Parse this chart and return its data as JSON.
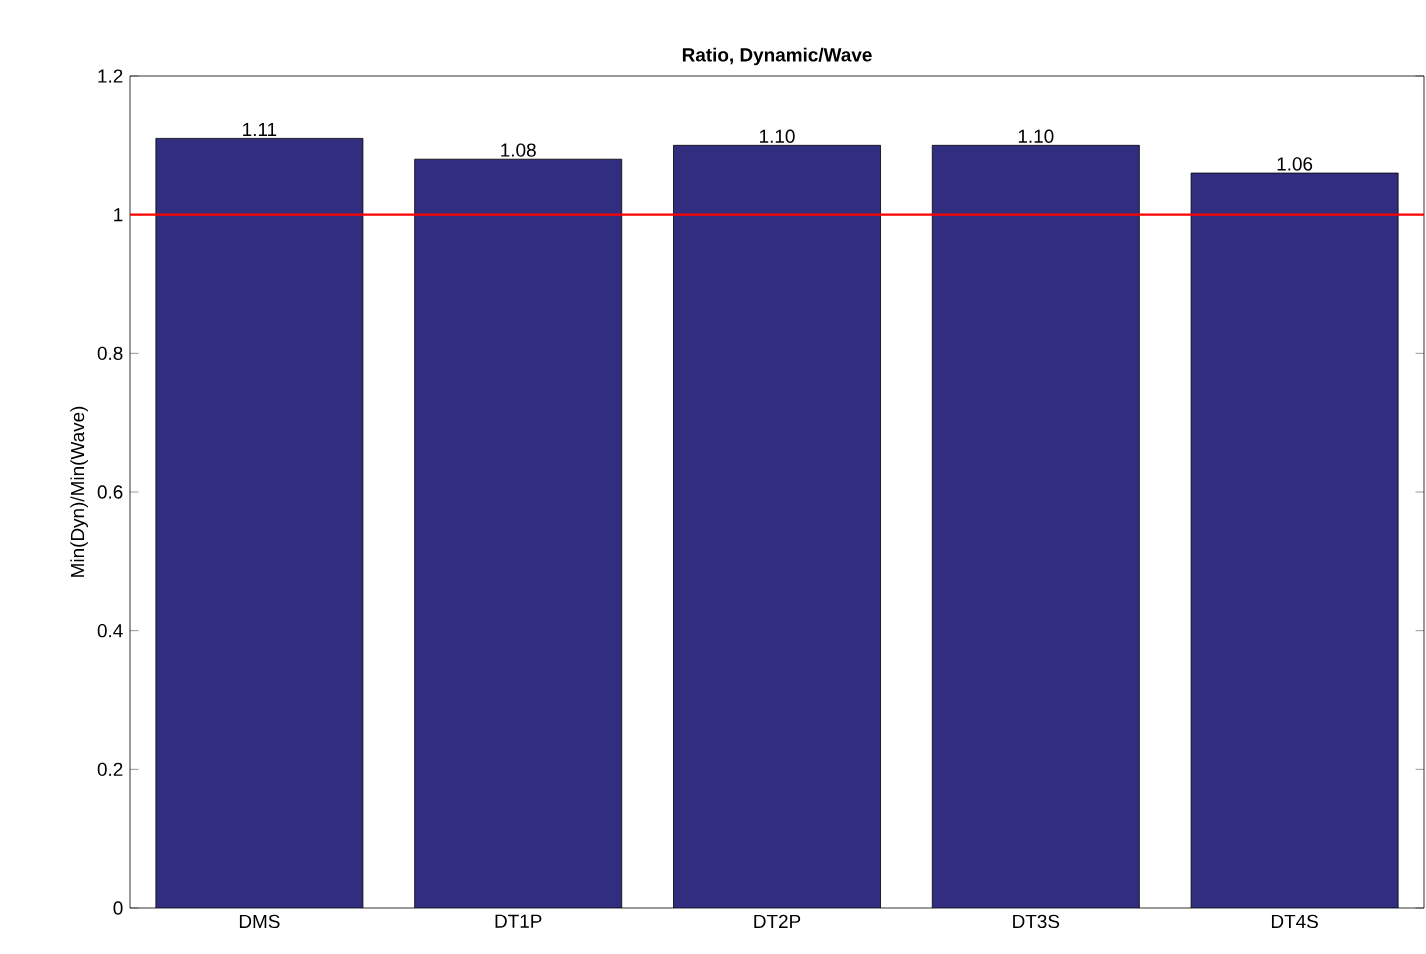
{
  "chart_data": {
    "type": "bar",
    "title": "Ratio, Dynamic/Wave",
    "ylabel": "Min(Dyn)/Min(Wave)",
    "categories": [
      "DMS",
      "DT1P",
      "DT2P",
      "DT3S",
      "DT4S"
    ],
    "values": [
      1.11,
      1.08,
      1.1,
      1.1,
      1.06
    ],
    "value_labels": [
      "1.11",
      "1.08",
      "1.10",
      "1.10",
      "1.06"
    ],
    "color": "#312e80",
    "ylim": [
      0,
      1.2
    ],
    "yticks": [
      0,
      0.2,
      0.4,
      0.6,
      0.8,
      1,
      1.2
    ],
    "ref_lines": [
      {
        "axis": "y",
        "value": 1,
        "color": "#ff0000"
      }
    ]
  }
}
